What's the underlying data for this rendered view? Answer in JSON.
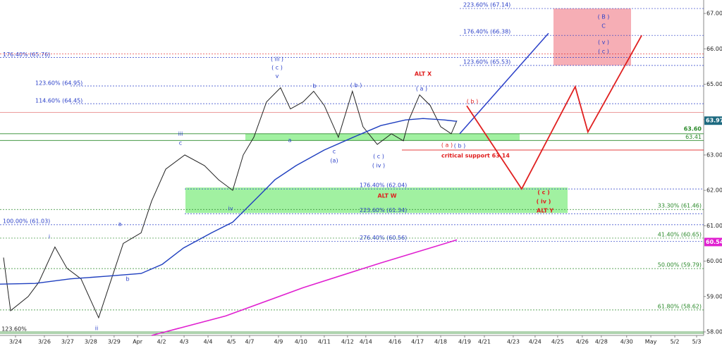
{
  "chart_data": {
    "type": "line",
    "xlim": [
      -0.66,
      29.31
    ],
    "ylim": [
      57.9,
      67.38
    ],
    "xticks": [
      {
        "value": 0,
        "label": "3/24"
      },
      {
        "value": 1.23,
        "label": "3/26"
      },
      {
        "value": 2.22,
        "label": "3/27"
      },
      {
        "value": 3.21,
        "label": "3/28"
      },
      {
        "value": 4.2,
        "label": "3/29"
      },
      {
        "value": 5.2,
        "label": "Apr"
      },
      {
        "value": 6.22,
        "label": "4/2"
      },
      {
        "value": 7.18,
        "label": "4/3"
      },
      {
        "value": 8.2,
        "label": "4/4"
      },
      {
        "value": 9.19,
        "label": "4/5"
      },
      {
        "value": 9.97,
        "label": "4/7"
      },
      {
        "value": 11.2,
        "label": "4/9"
      },
      {
        "value": 12.16,
        "label": "4/10"
      },
      {
        "value": 13.15,
        "label": "4/11"
      },
      {
        "value": 14.14,
        "label": "4/12"
      },
      {
        "value": 14.92,
        "label": "4/14"
      },
      {
        "value": 16.16,
        "label": "4/16"
      },
      {
        "value": 17.12,
        "label": "4/17"
      },
      {
        "value": 18.11,
        "label": "4/18"
      },
      {
        "value": 19.13,
        "label": "4/19"
      },
      {
        "value": 19.97,
        "label": "4/21"
      },
      {
        "value": 21.2,
        "label": "4/23"
      },
      {
        "value": 22.13,
        "label": "4/24"
      },
      {
        "value": 23.09,
        "label": "4/25"
      },
      {
        "value": 24.14,
        "label": "4/26"
      },
      {
        "value": 24.95,
        "label": "4/28"
      },
      {
        "value": 26.03,
        "label": "4/30"
      },
      {
        "value": 27.06,
        "label": "May"
      },
      {
        "value": 28.08,
        "label": "5/2"
      },
      {
        "value": 29.01,
        "label": "5/3"
      }
    ],
    "yticks": [
      {
        "value": 58,
        "label": "58.00"
      },
      {
        "value": 59,
        "label": "59.00"
      },
      {
        "value": 60,
        "label": "60.00"
      },
      {
        "value": 61,
        "label": "61.00"
      },
      {
        "value": 62,
        "label": "62.00"
      },
      {
        "value": 63,
        "label": "63.00"
      },
      {
        "value": 64,
        "label": "64.00"
      },
      {
        "value": 65,
        "label": "65.00"
      },
      {
        "value": 66,
        "label": "66.00"
      },
      {
        "value": 67,
        "label": "67.00"
      }
    ],
    "series": [
      {
        "color": "#222222",
        "x": [
          -0.51,
          -0.21,
          0.54,
          0.99,
          1.68,
          2.19,
          2.79,
          3.54,
          3.99,
          4.59,
          5.35,
          5.8,
          6.4,
          7.21,
          8.05,
          8.65,
          9.25,
          9.7,
          10.15,
          10.69,
          11.29,
          11.71,
          12.25,
          12.7,
          13.15,
          13.75,
          14.35,
          14.8,
          15.41,
          16.01,
          16.52,
          16.76,
          17.21,
          17.66,
          18.11,
          18.56,
          18.8
        ],
        "values": [
          60.1,
          58.6,
          59.0,
          59.4,
          60.4,
          59.8,
          59.5,
          58.4,
          59.3,
          60.5,
          60.8,
          61.7,
          62.6,
          63.0,
          62.7,
          62.3,
          62.0,
          63.0,
          63.5,
          64.5,
          64.9,
          64.3,
          64.5,
          64.8,
          64.4,
          63.5,
          64.8,
          63.8,
          63.3,
          63.6,
          63.4,
          64.0,
          64.7,
          64.4,
          63.8,
          63.6,
          63.97
        ]
      },
      {
        "color": "#1f3fbf",
        "x": [
          -0.66,
          0.84,
          2.34,
          3.84,
          5.35,
          6.25,
          7.15,
          8.35,
          9.25,
          9.85,
          10.45,
          11.05,
          11.95,
          13.15,
          14.35,
          15.56,
          16.61,
          17.36,
          18.26,
          18.8
        ],
        "values": [
          59.35,
          59.37,
          59.5,
          59.57,
          59.65,
          59.91,
          60.37,
          60.8,
          61.1,
          61.5,
          61.9,
          62.3,
          62.7,
          63.14,
          63.49,
          63.83,
          63.99,
          64.03,
          63.99,
          63.95
        ]
      },
      {
        "color": "#e020d0",
        "x": [
          5.8,
          8.95,
          12.25,
          15.56,
          18.8
        ],
        "values": [
          57.9,
          58.45,
          59.25,
          59.95,
          60.6
        ]
      },
      {
        "color": "#2a3fc8",
        "x": [
          18.92,
          22.7
        ],
        "values": [
          63.6,
          66.44
        ]
      },
      {
        "color": "#e02020",
        "x": [
          19.22,
          21.56,
          23.84,
          24.38,
          26.67
        ],
        "values": [
          64.39,
          62.04,
          64.93,
          63.65,
          66.38
        ]
      }
    ],
    "zones": [
      {
        "range": [
          63.41,
          63.6
        ],
        "color": "#90ee90"
      },
      {
        "range": [
          61.36,
          62.08
        ],
        "color": "#90ee90"
      },
      {
        "range": [
          65.53,
          67.14
        ],
        "color": "#f4a0a8"
      }
    ],
    "levels": [
      {
        "value": 67.14,
        "label": "223.60% (67.14)",
        "color": "#2a3fc8"
      },
      {
        "value": 66.38,
        "label": "176.40% (66.38)",
        "color": "#2a3fc8"
      },
      {
        "value": 65.76,
        "label": "176.40% (65.76)",
        "color": "#2a3fc8"
      },
      {
        "value": 65.53,
        "label": "123.60% (65.53)",
        "color": "#2a3fc8"
      },
      {
        "value": 64.95,
        "label": "123.60% (64.95)",
        "color": "#2a3fc8"
      },
      {
        "value": 64.45,
        "label": "114.60% (64.45)",
        "color": "#2a3fc8"
      },
      {
        "value": 62.04,
        "label": "176.40% (62.04)",
        "color": "#2a3fc8"
      },
      {
        "value": 61.34,
        "label": "223.60% (61.34)",
        "color": "#2a3fc8"
      },
      {
        "value": 61.03,
        "label": "100.00% (61.03)",
        "color": "#2a3fc8"
      },
      {
        "value": 60.56,
        "label": "276.40% (60.56)",
        "color": "#2a3fc8"
      },
      {
        "value": 61.46,
        "label": "33.30% (61.46)",
        "color": "#2a8a2a"
      },
      {
        "value": 60.65,
        "label": "41.40% (60.65)",
        "color": "#2a8a2a"
      },
      {
        "value": 59.79,
        "label": "50.00% (59.79)",
        "color": "#2a8a2a"
      },
      {
        "value": 58.62,
        "label": "61.80% (58.62)",
        "color": "#2a8a2a"
      },
      {
        "value": 63.6,
        "label": "63.60",
        "color": "#2a8a2a"
      },
      {
        "value": 63.41,
        "label": "63.41",
        "color": "#2a8a2a"
      },
      {
        "value": 63.14,
        "label": "critical support 63.14",
        "color": "#e02020"
      },
      {
        "value": 65.86,
        "color": "#e02020"
      },
      {
        "value": 64.2,
        "color": "#e06060"
      }
    ],
    "price_tags": [
      {
        "value": 63.97,
        "label": "63.97",
        "color": "#1d6a80"
      },
      {
        "value": 60.54,
        "label": "60.54",
        "color": "#e020d0"
      }
    ],
    "annotations": [
      {
        "text": "i",
        "color": "#2a3fc8"
      },
      {
        "text": "ii",
        "color": "#2a3fc8"
      },
      {
        "text": "a",
        "color": "#2a3fc8"
      },
      {
        "text": "b",
        "color": "#2a3fc8"
      },
      {
        "text": "iii",
        "color": "#2a3fc8"
      },
      {
        "text": "c",
        "color": "#2a3fc8"
      },
      {
        "text": "iv",
        "color": "#2a3fc8"
      },
      {
        "text": "( iii )",
        "color": "#2a3fc8"
      },
      {
        "text": "( c )",
        "color": "#2a3fc8"
      },
      {
        "text": "v",
        "color": "#2a3fc8"
      },
      {
        "text": "a",
        "color": "#2a3fc8"
      },
      {
        "text": "b",
        "color": "#2a3fc8"
      },
      {
        "text": "( b )",
        "color": "#2a3fc8"
      },
      {
        "text": "c",
        "color": "#2a3fc8"
      },
      {
        "text": "(a)",
        "color": "#2a3fc8"
      },
      {
        "text": "( c )",
        "color": "#2a3fc8"
      },
      {
        "text": "( iv )",
        "color": "#2a3fc8"
      },
      {
        "text": "( a )",
        "color": "#2a3fc8"
      },
      {
        "text": "( b )",
        "color": "#2a3fc8"
      },
      {
        "text": "( B )",
        "color": "#2a3fc8"
      },
      {
        "text": "C",
        "color": "#2a3fc8"
      },
      {
        "text": "( v )",
        "color": "#2a3fc8"
      },
      {
        "text": "( c )",
        "color": "#2a3fc8"
      },
      {
        "text": "ALT X",
        "color": "#e02020"
      },
      {
        "text": "( b )",
        "color": "#e02020"
      },
      {
        "text": "( a )",
        "color": "#e02020"
      },
      {
        "text": "ALT W",
        "color": "#e02020"
      },
      {
        "text": "( c )",
        "color": "#e02020"
      },
      {
        "text": "( iv )",
        "color": "#e02020"
      },
      {
        "text": "ALT Y",
        "color": "#e02020"
      },
      {
        "text": "123.60%",
        "color": "#222222"
      }
    ]
  }
}
